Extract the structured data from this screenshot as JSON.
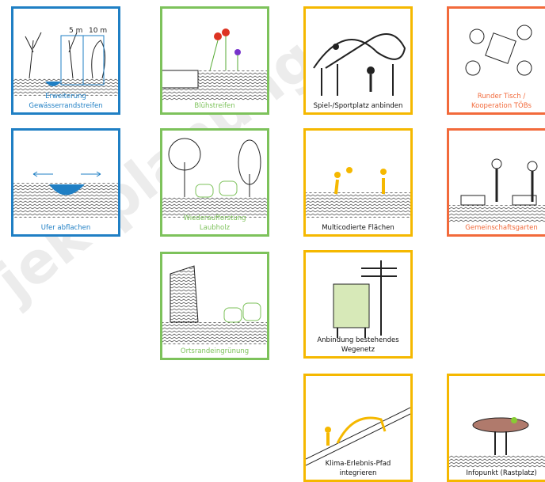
{
  "watermark": "jektplanung",
  "tiles": [
    {
      "label": [
        "Erweiterung",
        "Gewässerrandstreifen"
      ],
      "annotations": [
        "5 m",
        "10 m"
      ]
    },
    {
      "label": [
        "Ufer abflachen"
      ]
    },
    {
      "label": [
        "Blühstreifen"
      ]
    },
    {
      "label": [
        "Wiederaufforstung",
        "Laubholz"
      ]
    },
    {
      "label": [
        "Ortsrandeingrünung"
      ]
    },
    {
      "label": [
        "Spiel-/Sportplatz anbinden"
      ]
    },
    {
      "label": [
        "Multicodierte Flächen"
      ]
    },
    {
      "label": [
        "Anbindung bestehendes",
        "Wegenetz"
      ]
    },
    {
      "label": [
        "Klima-Erlebnis-Pfad",
        "integrieren"
      ]
    },
    {
      "label": [
        "Runder Tisch /",
        "Kooperation TÖBs"
      ]
    },
    {
      "label": [
        "Gemeinschaftsgarten"
      ]
    },
    {
      "label": [
        "Infopunkt (Rastplatz)"
      ]
    }
  ]
}
